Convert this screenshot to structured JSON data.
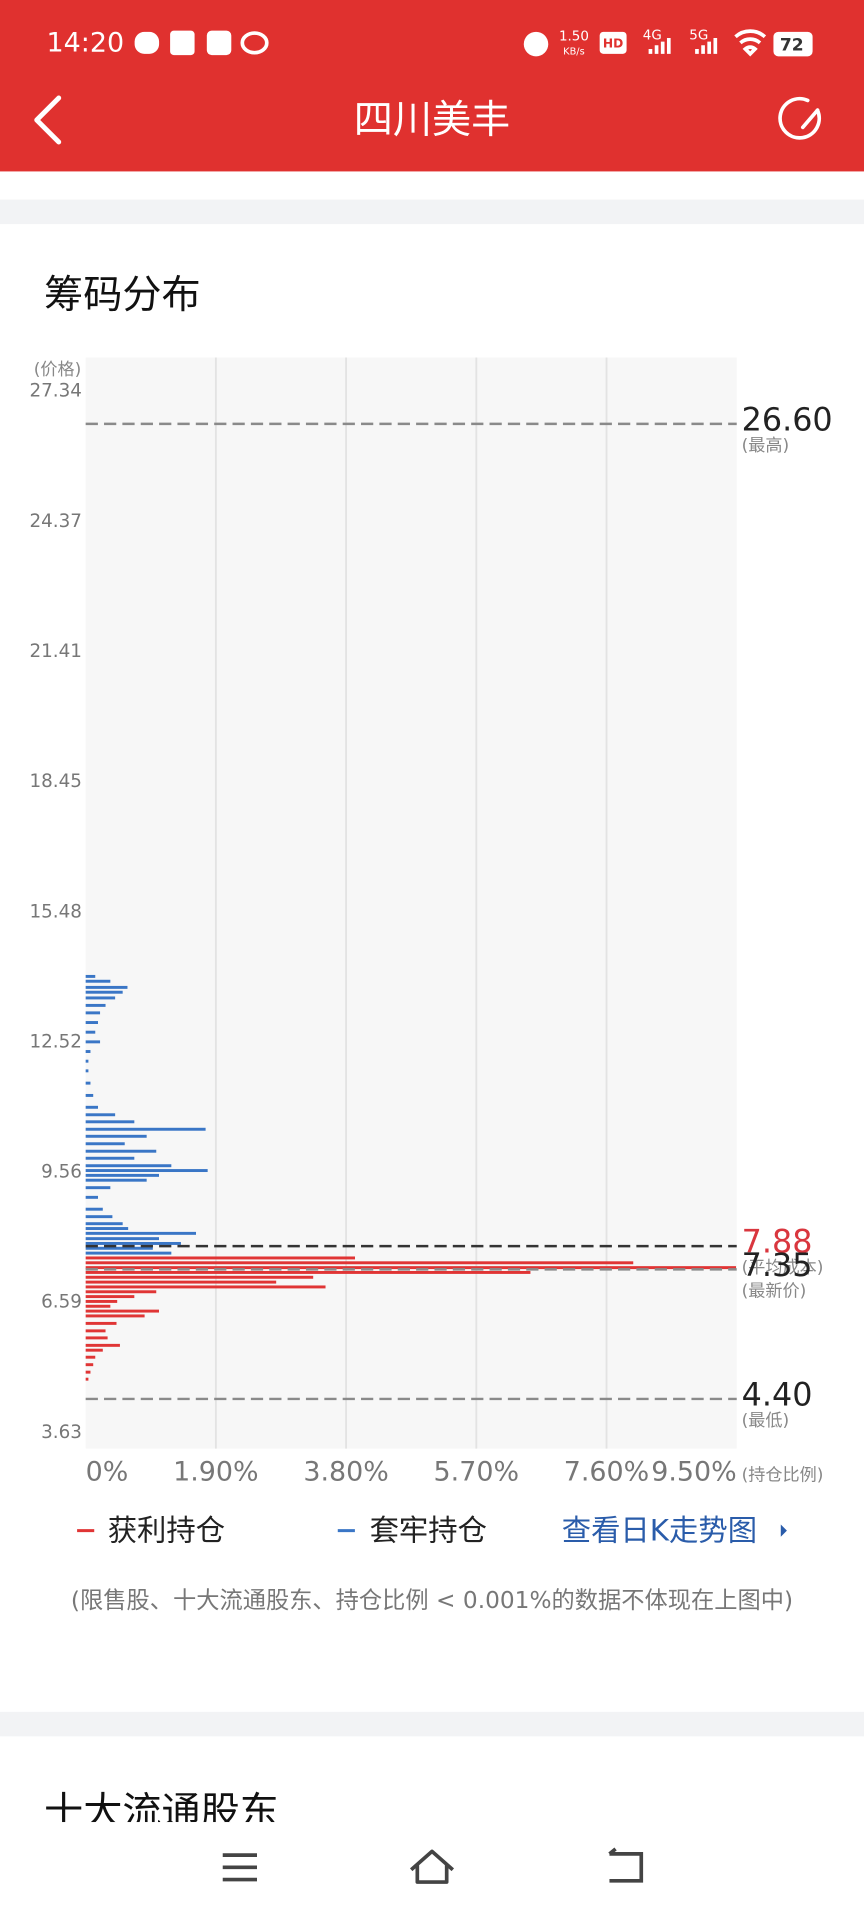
{
  "status_bar": {
    "time": "14:20",
    "speed": "1.50",
    "speed_unit": "KB/s",
    "hd": "HD",
    "net1": "4G",
    "net2": "5G",
    "battery": "72"
  },
  "header": {
    "title": "四川美丰"
  },
  "link": "查看日K走势图",
  "note": "(限售股、十大流通股东、持仓比例 < 0.001%的数据不体现在上图中)",
  "next_section": "十大流通股东",
  "chart_data": {
    "type": "hbar",
    "title": "筹码分布",
    "y_label": "(价格)",
    "x_label": "(持仓比例)",
    "ylim": [
      3.27,
      28.11
    ],
    "yticks": [
      27.34,
      24.37,
      21.41,
      18.45,
      15.48,
      12.52,
      9.56,
      6.59,
      3.63
    ],
    "xlim": [
      0,
      9.5
    ],
    "xticks": [
      {
        "value": 0,
        "label": "0%"
      },
      {
        "value": 1.9,
        "label": "1.90%"
      },
      {
        "value": 3.8,
        "label": "3.80%"
      },
      {
        "value": 5.7,
        "label": "5.70%"
      },
      {
        "value": 7.6,
        "label": "7.60%"
      },
      {
        "value": 9.5,
        "label": "9.50%"
      }
    ],
    "grid": true,
    "series": [
      {
        "name": "获利持仓",
        "color": "#e03535",
        "y": [
          7.61,
          7.5,
          7.39,
          7.28,
          7.17,
          7.06,
          6.95,
          6.84,
          6.73,
          6.62,
          6.51,
          6.4,
          6.29,
          6.12,
          5.95,
          5.79,
          5.62,
          5.51,
          5.35,
          5.18,
          5.01,
          4.85
        ],
        "values": [
          3.93,
          7.99,
          9.49,
          6.49,
          3.32,
          2.78,
          3.5,
          1.03,
          0.71,
          0.46,
          0.36,
          1.07,
          0.86,
          0.45,
          0.29,
          0.32,
          0.5,
          0.25,
          0.14,
          0.11,
          0.07,
          0.04
        ]
      },
      {
        "name": "套牢持仓",
        "color": "#3a76c6",
        "y": [
          14.02,
          13.91,
          13.77,
          13.66,
          13.53,
          13.36,
          13.19,
          12.97,
          12.75,
          12.53,
          12.31,
          12.09,
          11.87,
          11.59,
          11.31,
          11.04,
          10.87,
          10.71,
          10.54,
          10.38,
          10.21,
          10.04,
          9.88,
          9.71,
          9.6,
          9.49,
          9.38,
          9.21,
          8.99,
          8.72,
          8.55,
          8.39,
          8.28,
          8.17,
          8.05,
          7.94,
          7.83,
          7.72
        ],
        "values": [
          0.14,
          0.36,
          0.61,
          0.54,
          0.43,
          0.29,
          0.21,
          0.18,
          0.14,
          0.21,
          0.07,
          0.04,
          0.04,
          0.07,
          0.11,
          0.18,
          0.43,
          0.71,
          1.75,
          0.89,
          0.57,
          1.03,
          0.71,
          1.25,
          1.78,
          1.07,
          0.89,
          0.36,
          0.18,
          0.25,
          0.39,
          0.54,
          0.62,
          1.61,
          1.07,
          1.39,
          0.98,
          1.25
        ]
      }
    ],
    "annotations": [
      {
        "value": 26.6,
        "label": "26.60",
        "note": "(最高)",
        "color": "#8a8a8a",
        "label_color": "#222222"
      },
      {
        "value": 7.88,
        "label": "7.88",
        "note": "(平均成本)",
        "color": "#333333",
        "label_color": "#d9363e"
      },
      {
        "value": 7.35,
        "label": "7.35",
        "note": "(最新价)",
        "color": "#8a8a8a",
        "label_color": "#222222"
      },
      {
        "value": 4.4,
        "label": "4.40",
        "note": "(最低)",
        "color": "#8a8a8a",
        "label_color": "#222222"
      }
    ]
  }
}
